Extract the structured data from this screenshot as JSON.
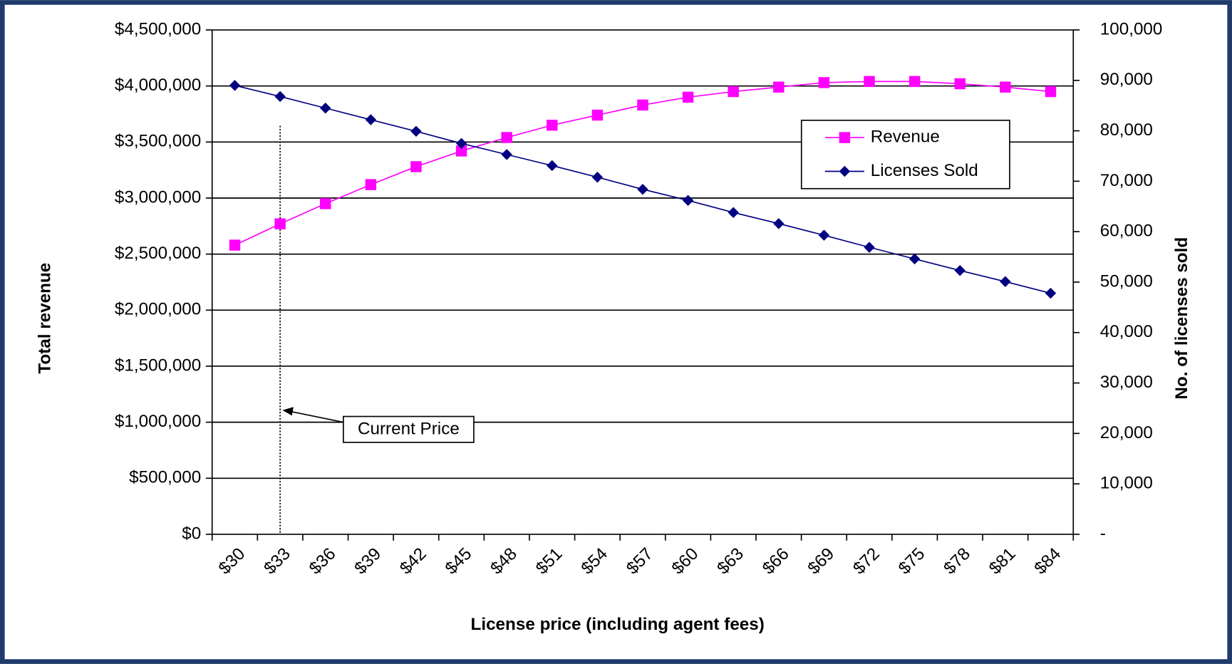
{
  "chart_data": {
    "type": "line",
    "x_label": "License price (including agent fees)",
    "y_label": "Total revenue",
    "y2_label": "No. of licenses sold",
    "categories": [
      "$30",
      "$33",
      "$36",
      "$39",
      "$42",
      "$45",
      "$48",
      "$51",
      "$54",
      "$57",
      "$60",
      "$63",
      "$66",
      "$69",
      "$72",
      "$75",
      "$78",
      "$81",
      "$84"
    ],
    "series": [
      {
        "name": "Revenue",
        "color": "#ff00ff",
        "marker": "square",
        "values": [
          2580000,
          2770000,
          2950000,
          3120000,
          3280000,
          3420000,
          3540000,
          3650000,
          3740000,
          3830000,
          3900000,
          3950000,
          3990000,
          4030000,
          4040000,
          4040000,
          4020000,
          3990000,
          3950000
        ]
      },
      {
        "name": "Licenses Sold",
        "color": "#000080",
        "marker": "diamond",
        "axis": "y2",
        "values": [
          89000,
          86800,
          84500,
          82200,
          79900,
          77500,
          75300,
          73100,
          70800,
          68400,
          66200,
          63800,
          61600,
          59300,
          56900,
          54600,
          52300,
          50100,
          47800
        ]
      }
    ],
    "ylim": [
      0,
      4500000
    ],
    "yticks": [
      {
        "value": 0,
        "label": "$0"
      },
      {
        "value": 500000,
        "label": "$500,000"
      },
      {
        "value": 1000000,
        "label": "$1,000,000"
      },
      {
        "value": 1500000,
        "label": "$1,500,000"
      },
      {
        "value": 2000000,
        "label": "$2,000,000"
      },
      {
        "value": 2500000,
        "label": "$2,500,000"
      },
      {
        "value": 3000000,
        "label": "$3,000,000"
      },
      {
        "value": 3500000,
        "label": "$3,500,000"
      },
      {
        "value": 4000000,
        "label": "$4,000,000"
      },
      {
        "value": 4500000,
        "label": "$4,500,000"
      }
    ],
    "y2lim": [
      0,
      100000
    ],
    "y2ticks": [
      {
        "value": 0,
        "label": "-"
      },
      {
        "value": 10000,
        "label": "10,000"
      },
      {
        "value": 20000,
        "label": "20,000"
      },
      {
        "value": 30000,
        "label": "30,000"
      },
      {
        "value": 40000,
        "label": "40,000"
      },
      {
        "value": 50000,
        "label": "50,000"
      },
      {
        "value": 60000,
        "label": "60,000"
      },
      {
        "value": 70000,
        "label": "70,000"
      },
      {
        "value": 80000,
        "label": "80,000"
      },
      {
        "value": 90000,
        "label": "90,000"
      },
      {
        "value": 100000,
        "label": "100,000"
      }
    ],
    "grid": true,
    "legend": "upper right",
    "annotation": {
      "text": "Current Price",
      "x": "$33"
    }
  }
}
